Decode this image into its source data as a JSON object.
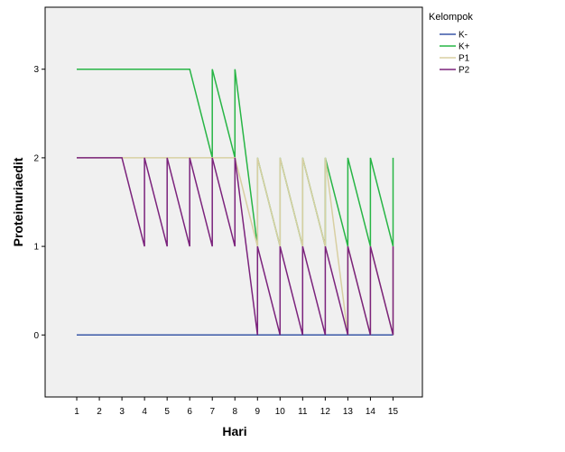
{
  "chart_data": {
    "type": "line",
    "title": "",
    "xlabel": "Hari",
    "ylabel": "Proteinuriaedit",
    "x_ticks": [
      "1",
      "2",
      "3",
      "4",
      "5",
      "6",
      "7",
      "8",
      "9",
      "10",
      "11",
      "12",
      "13",
      "14",
      "15"
    ],
    "y_ticks": [
      "0",
      "1",
      "2",
      "3"
    ],
    "xlim": [
      -0.4,
      16.3
    ],
    "ylim": [
      -0.7,
      3.7
    ],
    "grid": false,
    "legend": {
      "title": "Kelompok",
      "position": "right"
    },
    "series": [
      {
        "name": "K-",
        "color": "#3a57a7",
        "points": [
          [
            1,
            0
          ],
          [
            15,
            0
          ]
        ]
      },
      {
        "name": "K+",
        "color": "#27b545",
        "points": [
          [
            1,
            3
          ],
          [
            6,
            3
          ],
          [
            7,
            2
          ],
          [
            7,
            3
          ],
          [
            8,
            2
          ],
          [
            8,
            3
          ],
          [
            9,
            1
          ],
          [
            9,
            2
          ],
          [
            10,
            1
          ],
          [
            10,
            2
          ],
          [
            11,
            1
          ],
          [
            11,
            2
          ],
          [
            12,
            1
          ],
          [
            12,
            2
          ],
          [
            13,
            1
          ],
          [
            13,
            2
          ],
          [
            14,
            1
          ],
          [
            14,
            2
          ],
          [
            15,
            1
          ],
          [
            15,
            2
          ]
        ]
      },
      {
        "name": "P1",
        "color": "#d8cfa2",
        "points": [
          [
            1,
            2
          ],
          [
            8,
            2
          ],
          [
            9,
            1
          ],
          [
            9,
            2
          ],
          [
            10,
            1
          ],
          [
            10,
            2
          ],
          [
            11,
            1
          ],
          [
            11,
            2
          ],
          [
            12,
            1
          ],
          [
            12,
            2
          ],
          [
            13,
            0
          ],
          [
            13,
            1
          ],
          [
            14,
            0
          ],
          [
            14,
            1
          ],
          [
            15,
            0
          ],
          [
            15,
            1
          ]
        ]
      },
      {
        "name": "P2",
        "color": "#7b237c",
        "points": [
          [
            1,
            2
          ],
          [
            3,
            2
          ],
          [
            4,
            1
          ],
          [
            4,
            2
          ],
          [
            5,
            1
          ],
          [
            5,
            2
          ],
          [
            6,
            1
          ],
          [
            6,
            2
          ],
          [
            7,
            1
          ],
          [
            7,
            2
          ],
          [
            8,
            1
          ],
          [
            8,
            2
          ],
          [
            9,
            0
          ],
          [
            9,
            1
          ],
          [
            10,
            0
          ],
          [
            10,
            1
          ],
          [
            11,
            0
          ],
          [
            11,
            1
          ],
          [
            12,
            0
          ],
          [
            12,
            1
          ],
          [
            13,
            0
          ],
          [
            13,
            1
          ],
          [
            14,
            0
          ],
          [
            14,
            1
          ],
          [
            15,
            0
          ],
          [
            15,
            1
          ]
        ]
      }
    ]
  }
}
